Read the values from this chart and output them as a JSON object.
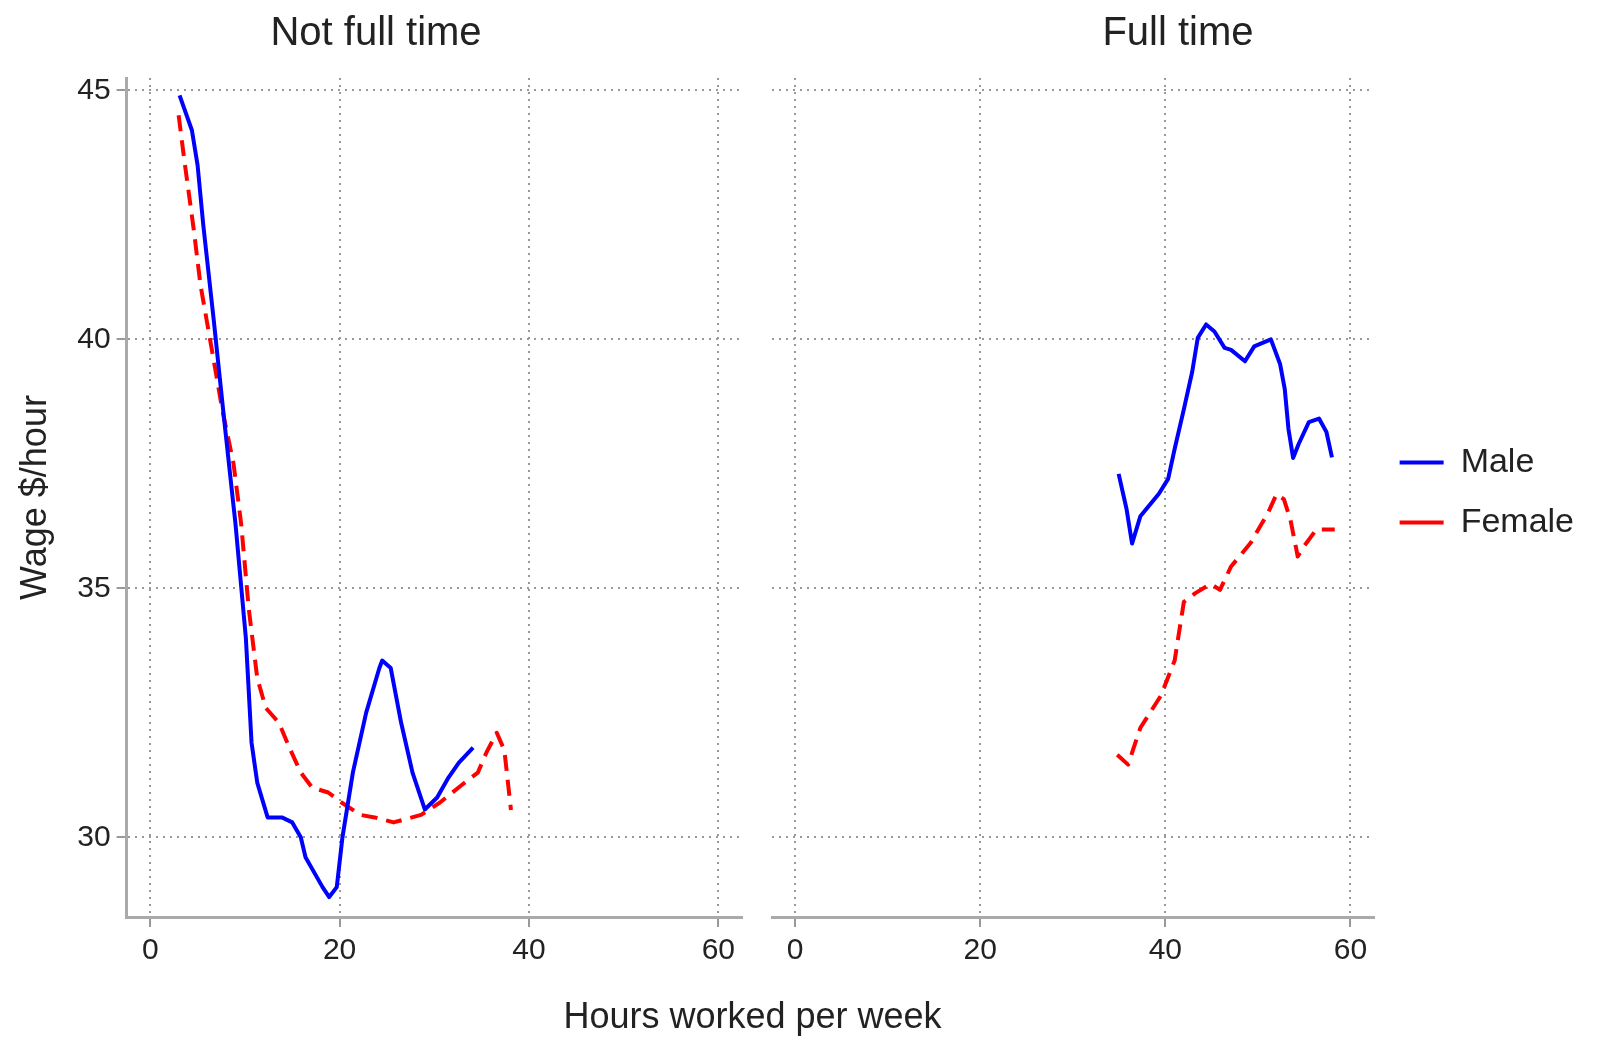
{
  "chart_data": [
    {
      "type": "line",
      "title": "Not full time",
      "xlabel": "Hours worked per week",
      "ylabel": "Wage $/hour",
      "xlim": [
        -2.5,
        62.5
      ],
      "xticks": [
        0,
        20,
        40,
        60
      ],
      "ylim": [
        28.4,
        45.25
      ],
      "yticks": [
        30,
        35,
        40,
        45
      ],
      "grid": true,
      "legend": false,
      "marker": "none",
      "series": [
        {
          "color": "#0000ff",
          "line_style": "solid",
          "x": [
            3.1,
            4.4,
            5,
            5.6,
            6.7,
            7.8,
            9,
            10.1,
            10.7,
            11.3,
            12.4,
            13.9,
            15,
            15.9,
            16.4,
            18.2,
            18.9,
            19.7,
            20.3,
            21.4,
            22.8,
            24.2,
            24.5,
            25.4,
            26.5,
            27.7,
            29,
            30.3,
            31.5,
            32.6,
            34.1
          ],
          "values": [
            44.9,
            44.2,
            43.5,
            42.3,
            40.4,
            38.4,
            36.3,
            34,
            31.9,
            31.1,
            30.4,
            30.4,
            30.3,
            30,
            29.6,
            29,
            28.8,
            29,
            30,
            31.3,
            32.5,
            33.4,
            33.55,
            33.4,
            32.3,
            31.3,
            30.56,
            30.8,
            31.2,
            31.5,
            31.8
          ]
        },
        {
          "color": "#ff0000",
          "line_style": "dashed",
          "x": [
            3,
            3.6,
            4.6,
            5.3,
            6.5,
            7.6,
            8.8,
            9.6,
            10.4,
            11.3,
            12.2,
            13.6,
            14.7,
            15.9,
            17.1,
            18.8,
            20.2,
            22.2,
            23.7,
            25.7,
            28.6,
            30.6,
            32.9,
            34.6,
            35.5,
            36.6,
            37.4,
            38.1
          ],
          "values": [
            44.5,
            43.6,
            42.2,
            41.1,
            39.8,
            38.6,
            37.5,
            36.3,
            34.6,
            33.2,
            32.6,
            32.3,
            31.8,
            31.3,
            31,
            30.9,
            30.7,
            30.45,
            30.4,
            30.3,
            30.45,
            30.7,
            31.05,
            31.3,
            31.7,
            32.1,
            31.75,
            30.55
          ]
        }
      ]
    },
    {
      "type": "line",
      "title": "Full time",
      "xlim": [
        -2.5,
        62.5
      ],
      "xticks": [
        0,
        20,
        40,
        60
      ],
      "ylim": [
        28.4,
        45.25
      ],
      "yticks": [
        30,
        35,
        40,
        45
      ],
      "tick_labels": "x",
      "grid": true,
      "legend": "right",
      "marker": "none",
      "series": [
        {
          "name": "Male",
          "color": "#0000ff",
          "line_style": "solid",
          "x": [
            34.95,
            35.8,
            36.4,
            37.3,
            39.3,
            40.3,
            41,
            42,
            42.9,
            43.5,
            44.4,
            45.3,
            46.4,
            47.1,
            48.6,
            49.6,
            51.4,
            52.4,
            52.9,
            53.3,
            53.8,
            54.4,
            55.5,
            56.6,
            57.4,
            58
          ],
          "values": [
            37.3,
            36.6,
            35.9,
            36.45,
            36.9,
            37.2,
            37.8,
            38.6,
            39.35,
            40.03,
            40.3,
            40.16,
            39.83,
            39.79,
            39.56,
            39.86,
            40,
            39.5,
            39,
            38.2,
            37.62,
            37.9,
            38.34,
            38.41,
            38.14,
            37.63
          ]
        },
        {
          "name": "Female",
          "color": "#ff0000",
          "line_style": "dashed",
          "x": [
            34.8,
            35.97,
            37.3,
            39.5,
            41,
            42,
            43.2,
            44.9,
            45.9,
            47.1,
            49.2,
            51.1,
            52,
            52.8,
            53.5,
            54.3,
            55,
            56.3,
            58.3
          ],
          "values": [
            31.66,
            31.46,
            32.2,
            32.84,
            33.55,
            34.73,
            34.9,
            35.09,
            34.97,
            35.44,
            35.91,
            36.52,
            36.89,
            36.79,
            36.39,
            35.64,
            35.85,
            36.18,
            36.18
          ]
        }
      ]
    }
  ]
}
